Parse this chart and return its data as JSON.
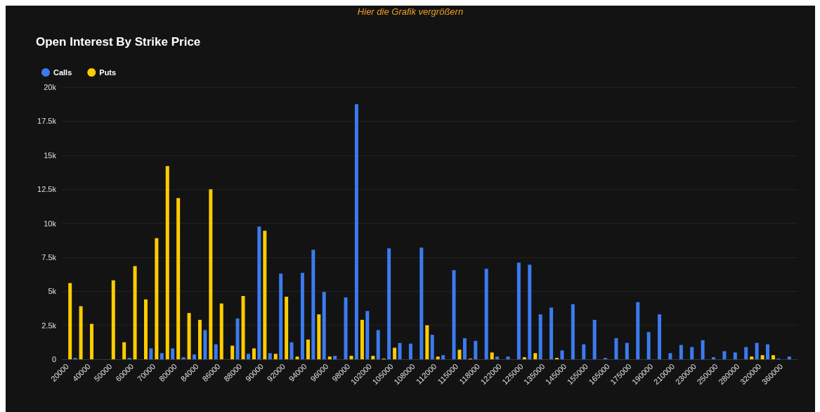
{
  "chart_data": {
    "type": "bar",
    "title": "Open Interest By Strike Price",
    "annotations": [
      "Hier die Grafik vergrößern"
    ],
    "categories": [
      "20000",
      null,
      "40000",
      null,
      "50000",
      null,
      "60000",
      null,
      "70000",
      null,
      "80000",
      null,
      "84000",
      null,
      "86000",
      null,
      "88000",
      null,
      "90000",
      null,
      "92000",
      null,
      "94000",
      null,
      "96000",
      null,
      "98000",
      null,
      "102000",
      null,
      "105000",
      null,
      "108000",
      null,
      "112000",
      null,
      "115000",
      null,
      "118000",
      null,
      "122000",
      null,
      "125000",
      null,
      "135000",
      null,
      "145000",
      null,
      "155000",
      null,
      "165000",
      null,
      "175000",
      null,
      "190000",
      null,
      "210000",
      null,
      "230000",
      null,
      "250000",
      null,
      "280000",
      null,
      "320000",
      null,
      "360000",
      null
    ],
    "series": [
      {
        "name": "Calls",
        "color": "#3b7bf0",
        "values": [
          0,
          100,
          0,
          0,
          0,
          0,
          100,
          0,
          800,
          450,
          800,
          150,
          350,
          2150,
          1100,
          0,
          3000,
          400,
          9750,
          450,
          6300,
          1250,
          6350,
          8050,
          4950,
          250,
          4550,
          18750,
          3550,
          2150,
          8150,
          1200,
          1150,
          8200,
          1800,
          300,
          6550,
          1550,
          1350,
          6650,
          200,
          200,
          7100,
          6950,
          3300,
          3800,
          650,
          4050,
          1100,
          2900,
          100,
          1550,
          1200,
          4200,
          2000,
          3300,
          450,
          1050,
          900,
          1400,
          150,
          600,
          500,
          900,
          1200,
          1100,
          50,
          200
        ]
      },
      {
        "name": "Puts",
        "color": "#ffcc00",
        "values": [
          5600,
          3900,
          2600,
          0,
          5800,
          1250,
          6850,
          4400,
          8900,
          14200,
          11850,
          3400,
          2900,
          12500,
          4100,
          1000,
          4650,
          800,
          9450,
          400,
          4600,
          200,
          1450,
          3300,
          200,
          0,
          250,
          2900,
          250,
          50,
          850,
          0,
          0,
          2500,
          200,
          0,
          700,
          50,
          0,
          500,
          0,
          0,
          150,
          450,
          0,
          100,
          0,
          0,
          0,
          0,
          0,
          0,
          0,
          0,
          0,
          0,
          0,
          0,
          0,
          0,
          0,
          0,
          0,
          200,
          300,
          300,
          0,
          0
        ]
      }
    ],
    "ylim": [
      0,
      20000
    ],
    "yticks": [
      0,
      {
        "value": 2500,
        "label": "2.5k"
      },
      {
        "value": 5000,
        "label": "5k"
      },
      {
        "value": 7500,
        "label": "7.5k"
      },
      {
        "value": 10000,
        "label": "10k"
      },
      {
        "value": 12500,
        "label": "12.5k"
      },
      {
        "value": 15000,
        "label": "15k"
      },
      {
        "value": 17500,
        "label": "17.5k"
      },
      {
        "value": 20000,
        "label": "20k"
      }
    ],
    "grid": "y",
    "legend": "top left"
  }
}
